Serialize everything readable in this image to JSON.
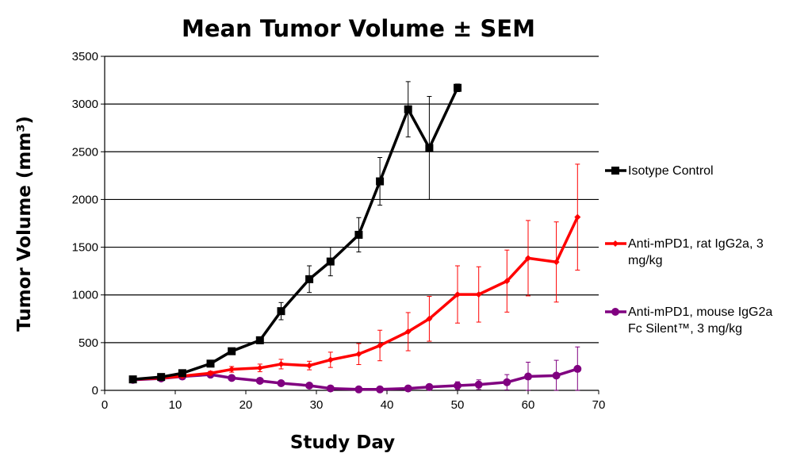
{
  "chart_data": {
    "type": "line",
    "title": "Mean Tumor Volume ± SEM",
    "xlabel": "Study Day",
    "ylabel": "Tumor Volume (mm³)",
    "xlim": [
      0,
      70
    ],
    "ylim": [
      0,
      3500
    ],
    "xticks": [
      0,
      10,
      20,
      30,
      40,
      50,
      60,
      70
    ],
    "yticks": [
      0,
      500,
      1000,
      1500,
      2000,
      2500,
      3000,
      3500
    ],
    "grid": "horizontal",
    "legend_position": "right",
    "series": [
      {
        "name": "Isotype Control",
        "legend_lines": [
          "Isotype Control"
        ],
        "color": "#000000",
        "marker": "square",
        "x": [
          4,
          8,
          11,
          15,
          18,
          22,
          25,
          29,
          32,
          36,
          39,
          43,
          46,
          50
        ],
        "y": [
          115,
          140,
          180,
          280,
          410,
          525,
          830,
          1165,
          1350,
          1630,
          2190,
          2945,
          2540,
          3170
        ],
        "err": [
          10,
          15,
          20,
          25,
          25,
          35,
          90,
          140,
          150,
          180,
          250,
          290,
          540,
          40
        ]
      },
      {
        "name": "Anti-mPD1, rat IgG2a, 3 mg/kg",
        "legend_lines": [
          "Anti-mPD1, rat IgG2a, 3",
          "mg/kg"
        ],
        "color": "#ff0000",
        "marker": "diamond",
        "x": [
          4,
          8,
          11,
          15,
          18,
          22,
          25,
          29,
          32,
          36,
          39,
          43,
          46,
          50,
          53,
          57,
          60,
          64,
          67
        ],
        "y": [
          115,
          130,
          150,
          180,
          220,
          235,
          275,
          260,
          320,
          380,
          470,
          615,
          750,
          1005,
          1005,
          1145,
          1385,
          1345,
          1815
        ],
        "err": [
          10,
          12,
          15,
          20,
          30,
          40,
          50,
          45,
          80,
          110,
          160,
          200,
          235,
          300,
          290,
          325,
          395,
          420,
          555
        ]
      },
      {
        "name": "Anti-mPD1, mouse IgG2a Fc Silent™, 3 mg/kg",
        "legend_lines": [
          "Anti-mPD1, mouse IgG2a",
          "Fc Silent™, 3 mg/kg"
        ],
        "color": "#800080",
        "marker": "circle",
        "x": [
          4,
          8,
          11,
          15,
          18,
          22,
          25,
          29,
          32,
          36,
          39,
          43,
          46,
          50,
          53,
          57,
          60,
          64,
          67
        ],
        "y": [
          110,
          125,
          145,
          165,
          130,
          100,
          75,
          50,
          20,
          10,
          10,
          20,
          35,
          50,
          60,
          85,
          145,
          155,
          225
        ],
        "err": [
          8,
          10,
          12,
          15,
          12,
          10,
          10,
          8,
          6,
          5,
          5,
          8,
          15,
          40,
          50,
          80,
          150,
          160,
          230
        ]
      }
    ]
  }
}
